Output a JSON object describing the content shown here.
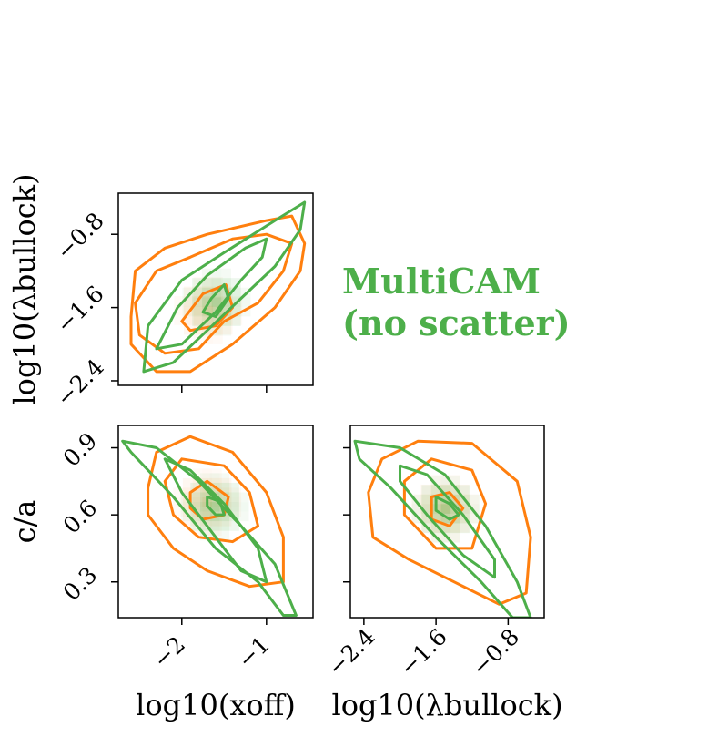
{
  "chart_data": [
    {
      "type": "scatter",
      "panel": "xoff-vs-lambda",
      "xlabel": "",
      "ylabel": "log10(λbullock)",
      "xlim": [
        -2.75,
        -0.45
      ],
      "ylim": [
        -2.45,
        -0.35
      ],
      "xticks": [
        "−2",
        "−1"
      ],
      "yticks": [
        "−2.4",
        "−1.6",
        "−0.8"
      ],
      "series": [
        {
          "color": "#ff7f0e",
          "contours": [
            [
              [
                -2.0,
                -1.75
              ],
              [
                -1.75,
                -1.45
              ],
              [
                -1.48,
                -1.35
              ],
              [
                -1.4,
                -1.6
              ],
              [
                -1.6,
                -1.8
              ],
              [
                -1.9,
                -1.85
              ]
            ],
            [
              [
                -2.55,
                -1.55
              ],
              [
                -2.3,
                -1.2
              ],
              [
                -1.9,
                -1.05
              ],
              [
                -1.4,
                -0.85
              ],
              [
                -1.0,
                -0.8
              ],
              [
                -0.7,
                -0.9
              ],
              [
                -0.8,
                -1.2
              ],
              [
                -1.1,
                -1.55
              ],
              [
                -1.5,
                -1.75
              ],
              [
                -1.8,
                -2.05
              ],
              [
                -2.2,
                -2.1
              ],
              [
                -2.5,
                -1.9
              ]
            ],
            [
              [
                -2.6,
                -1.7
              ],
              [
                -2.55,
                -1.2
              ],
              [
                -2.2,
                -0.95
              ],
              [
                -1.7,
                -0.8
              ],
              [
                -1.0,
                -0.65
              ],
              [
                -0.7,
                -0.6
              ],
              [
                -0.55,
                -0.9
              ],
              [
                -0.6,
                -1.2
              ],
              [
                -0.9,
                -1.6
              ],
              [
                -1.4,
                -2.0
              ],
              [
                -1.9,
                -2.3
              ],
              [
                -2.3,
                -2.3
              ],
              [
                -2.6,
                -2.0
              ]
            ]
          ]
        },
        {
          "color": "#4daf4a",
          "contours": [
            [
              [
                -1.75,
                -1.65
              ],
              [
                -1.65,
                -1.5
              ],
              [
                -1.5,
                -1.35
              ],
              [
                -1.45,
                -1.5
              ],
              [
                -1.6,
                -1.7
              ]
            ],
            [
              [
                -2.3,
                -2.05
              ],
              [
                -2.05,
                -1.6
              ],
              [
                -1.7,
                -1.25
              ],
              [
                -1.25,
                -0.95
              ],
              [
                -1.0,
                -0.85
              ],
              [
                -1.05,
                -1.05
              ],
              [
                -1.3,
                -1.3
              ],
              [
                -1.6,
                -1.65
              ],
              [
                -2.0,
                -2.0
              ]
            ],
            [
              [
                -2.45,
                -2.3
              ],
              [
                -2.4,
                -1.8
              ],
              [
                -2.0,
                -1.3
              ],
              [
                -1.5,
                -1.0
              ],
              [
                -0.9,
                -0.65
              ],
              [
                -0.55,
                -0.45
              ],
              [
                -0.6,
                -0.75
              ],
              [
                -0.9,
                -1.15
              ],
              [
                -1.3,
                -1.5
              ],
              [
                -1.7,
                -1.85
              ],
              [
                -2.1,
                -2.2
              ]
            ]
          ]
        }
      ]
    },
    {
      "type": "scatter",
      "panel": "xoff-vs-ca",
      "xlabel": "log10(xoff)",
      "ylabel": "c/a",
      "xlim": [
        -2.75,
        -0.45
      ],
      "ylim": [
        0.14,
        1.0
      ],
      "xticks": [
        "−2",
        "−1"
      ],
      "yticks": [
        "0.3",
        "0.6",
        "0.9"
      ],
      "series": [
        {
          "color": "#ff7f0e",
          "contours": [
            [
              [
                -1.9,
                0.7
              ],
              [
                -1.7,
                0.75
              ],
              [
                -1.45,
                0.68
              ],
              [
                -1.5,
                0.6
              ],
              [
                -1.75,
                0.58
              ],
              [
                -1.9,
                0.63
              ]
            ],
            [
              [
                -2.2,
                0.75
              ],
              [
                -2.0,
                0.85
              ],
              [
                -1.5,
                0.82
              ],
              [
                -1.2,
                0.7
              ],
              [
                -1.1,
                0.55
              ],
              [
                -1.4,
                0.48
              ],
              [
                -1.8,
                0.5
              ],
              [
                -2.1,
                0.6
              ]
            ],
            [
              [
                -2.4,
                0.72
              ],
              [
                -2.3,
                0.88
              ],
              [
                -1.9,
                0.95
              ],
              [
                -1.4,
                0.88
              ],
              [
                -1.0,
                0.7
              ],
              [
                -0.8,
                0.5
              ],
              [
                -0.8,
                0.3
              ],
              [
                -1.2,
                0.28
              ],
              [
                -1.7,
                0.35
              ],
              [
                -2.1,
                0.45
              ],
              [
                -2.4,
                0.6
              ]
            ]
          ]
        },
        {
          "color": "#4daf4a",
          "contours": [
            [
              [
                -1.7,
                0.68
              ],
              [
                -1.55,
                0.66
              ],
              [
                -1.5,
                0.6
              ],
              [
                -1.6,
                0.6
              ],
              [
                -1.7,
                0.64
              ]
            ],
            [
              [
                -2.2,
                0.85
              ],
              [
                -1.9,
                0.8
              ],
              [
                -1.5,
                0.65
              ],
              [
                -1.1,
                0.45
              ],
              [
                -1.0,
                0.3
              ],
              [
                -1.3,
                0.35
              ],
              [
                -1.6,
                0.5
              ],
              [
                -2.0,
                0.7
              ]
            ],
            [
              [
                -2.7,
                0.93
              ],
              [
                -2.3,
                0.9
              ],
              [
                -1.8,
                0.75
              ],
              [
                -1.3,
                0.55
              ],
              [
                -0.9,
                0.38
              ],
              [
                -0.65,
                0.15
              ],
              [
                -0.8,
                0.15
              ],
              [
                -1.1,
                0.3
              ],
              [
                -1.6,
                0.45
              ],
              [
                -2.1,
                0.68
              ],
              [
                -2.6,
                0.88
              ]
            ]
          ]
        }
      ]
    },
    {
      "type": "scatter",
      "panel": "lambda-vs-ca",
      "xlabel": "log10(λbullock)",
      "ylabel": "",
      "xlim": [
        -2.55,
        -0.4
      ],
      "ylim": [
        0.14,
        1.0
      ],
      "xticks": [
        "−2.4",
        "−1.6",
        "−0.8"
      ],
      "yticks": [],
      "series": [
        {
          "color": "#ff7f0e",
          "contours": [
            [
              [
                -1.65,
                0.68
              ],
              [
                -1.45,
                0.7
              ],
              [
                -1.3,
                0.63
              ],
              [
                -1.45,
                0.55
              ],
              [
                -1.65,
                0.58
              ]
            ],
            [
              [
                -1.95,
                0.75
              ],
              [
                -1.65,
                0.85
              ],
              [
                -1.2,
                0.8
              ],
              [
                -1.05,
                0.65
              ],
              [
                -1.2,
                0.45
              ],
              [
                -1.6,
                0.45
              ],
              [
                -1.95,
                0.6
              ]
            ],
            [
              [
                -2.35,
                0.7
              ],
              [
                -2.2,
                0.85
              ],
              [
                -1.8,
                0.93
              ],
              [
                -1.2,
                0.92
              ],
              [
                -0.7,
                0.75
              ],
              [
                -0.55,
                0.5
              ],
              [
                -0.6,
                0.25
              ],
              [
                -0.9,
                0.2
              ],
              [
                -1.4,
                0.3
              ],
              [
                -1.9,
                0.4
              ],
              [
                -2.3,
                0.5
              ]
            ]
          ]
        },
        {
          "color": "#4daf4a",
          "contours": [
            [
              [
                -1.6,
                0.68
              ],
              [
                -1.45,
                0.65
              ],
              [
                -1.35,
                0.6
              ],
              [
                -1.45,
                0.58
              ],
              [
                -1.6,
                0.62
              ]
            ],
            [
              [
                -2.0,
                0.82
              ],
              [
                -1.7,
                0.78
              ],
              [
                -1.3,
                0.6
              ],
              [
                -0.95,
                0.4
              ],
              [
                -0.95,
                0.32
              ],
              [
                -1.3,
                0.42
              ],
              [
                -1.7,
                0.6
              ],
              [
                -2.0,
                0.75
              ]
            ],
            [
              [
                -2.5,
                0.93
              ],
              [
                -2.0,
                0.9
              ],
              [
                -1.5,
                0.78
              ],
              [
                -1.05,
                0.55
              ],
              [
                -0.7,
                0.3
              ],
              [
                -0.55,
                0.14
              ],
              [
                -0.75,
                0.14
              ],
              [
                -1.1,
                0.3
              ],
              [
                -1.6,
                0.5
              ],
              [
                -2.1,
                0.72
              ],
              [
                -2.45,
                0.85
              ]
            ]
          ]
        }
      ]
    }
  ],
  "legend": {
    "line1": "MultiCAM",
    "line2": "(no scatter)",
    "color": "#4daf4a"
  }
}
